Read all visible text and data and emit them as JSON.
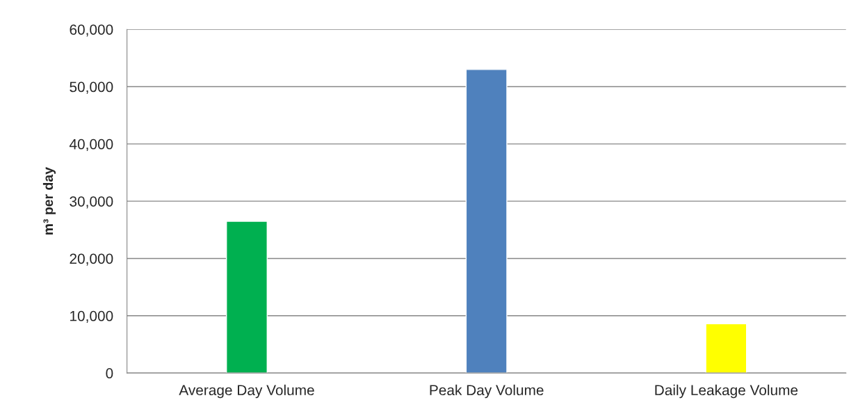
{
  "chart_data": {
    "type": "bar",
    "ylabel": "m³ per day",
    "categories": [
      "Average Day Volume",
      "Peak Day Volume",
      "Daily Leakage Volume"
    ],
    "values": [
      26500,
      53000,
      8600
    ],
    "colors": [
      "#00b050",
      "#4f81bd",
      "#ffff00"
    ],
    "ylim": [
      0,
      60000
    ],
    "yticks": [
      {
        "value": 0,
        "label": "0"
      },
      {
        "value": 10000,
        "label": "10,000"
      },
      {
        "value": 20000,
        "label": "20,000"
      },
      {
        "value": 30000,
        "label": "30,000"
      },
      {
        "value": 40000,
        "label": "40,000"
      },
      {
        "value": 50000,
        "label": "50,000"
      },
      {
        "value": 60000,
        "label": "60,000"
      }
    ],
    "grid": "y",
    "legend": false
  }
}
